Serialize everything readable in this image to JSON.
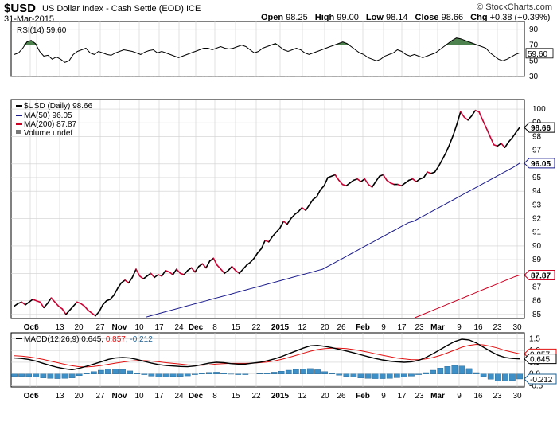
{
  "header": {
    "symbol": "$USD",
    "name": "US Dollar Index - Cash Settle (EOD) ICE",
    "date": "31-Mar-2015",
    "open_label": "Open",
    "open": "98.25",
    "high_label": "High",
    "high": "99.00",
    "low_label": "Low",
    "low": "98.14",
    "close_label": "Close",
    "close": "98.66",
    "chg_label": "Chg",
    "chg": "+0.38 (+0.39%)",
    "brand": "© StockCharts.com"
  },
  "chart_data": [
    {
      "type": "line",
      "panel": "RSI",
      "legend": "RSI(14) 59.60",
      "ylim": [
        30,
        100
      ],
      "yticks": [
        30,
        50,
        70,
        90
      ],
      "current_value_label": "59.60",
      "reference_lines": [
        70,
        30
      ],
      "series": [
        {
          "name": "RSI(14)",
          "values": [
            58,
            60,
            66,
            74,
            76,
            72,
            62,
            56,
            57,
            52,
            55,
            52,
            48,
            50,
            58,
            62,
            64,
            66,
            60,
            58,
            62,
            60,
            58,
            57,
            60,
            62,
            64,
            63,
            62,
            60,
            58,
            61,
            63,
            64,
            60,
            62,
            60,
            58,
            56,
            54,
            56,
            58,
            60,
            62,
            64,
            66,
            66,
            64,
            66,
            68,
            66,
            65,
            66,
            68,
            70,
            68,
            64,
            60,
            62,
            66,
            68,
            70,
            72,
            68,
            64,
            62,
            64,
            66,
            64,
            60,
            58,
            60,
            62,
            64,
            66,
            68,
            70,
            72,
            74,
            72,
            68,
            64,
            60,
            58,
            54,
            52,
            50,
            52,
            56,
            58,
            60,
            64,
            62,
            58,
            56,
            58,
            56,
            54,
            56,
            58,
            60,
            64,
            68,
            72,
            76,
            79,
            78,
            76,
            74,
            72,
            70,
            68,
            66,
            60,
            56,
            52,
            50,
            52,
            55,
            58,
            60
          ]
        }
      ]
    },
    {
      "type": "line",
      "panel": "Price",
      "legend": [
        "$USD (Daily) 98.66",
        "MA(50) 96.05",
        "MA(200) 87.87",
        "Volume undef"
      ],
      "ylim": [
        84.7,
        100.7
      ],
      "yticks": [
        85,
        86,
        87,
        88,
        89,
        90,
        91,
        92,
        93,
        94,
        95,
        96,
        97,
        98,
        99,
        100
      ],
      "x_tick_labels": [
        "Oct",
        "6",
        "13",
        "20",
        "27",
        "Nov",
        "10",
        "17",
        "24",
        "Dec",
        "8",
        "15",
        "22",
        "2015",
        "12",
        "20",
        "26",
        "Feb",
        "9",
        "17",
        "23",
        "Mar",
        "9",
        "16",
        "23",
        "30"
      ],
      "value_labels": {
        "close": "98.66",
        "ma50": "96.05",
        "ma200": "87.87"
      },
      "series": [
        {
          "name": "$USD (Daily)",
          "values": [
            85.6,
            85.8,
            85.9,
            85.7,
            85.9,
            86.1,
            86.0,
            85.9,
            85.5,
            85.8,
            86.2,
            85.9,
            85.6,
            85.4,
            85.0,
            85.3,
            85.6,
            85.9,
            85.8,
            85.6,
            85.3,
            85.1,
            84.9,
            85.2,
            85.7,
            86.0,
            86.1,
            86.4,
            86.9,
            87.3,
            87.5,
            87.3,
            87.7,
            88.3,
            87.8,
            87.6,
            87.8,
            88.0,
            87.7,
            87.9,
            87.8,
            88.2,
            88.1,
            87.9,
            88.3,
            88.0,
            87.9,
            88.2,
            88.4,
            88.1,
            88.5,
            88.7,
            88.4,
            88.9,
            89.1,
            88.6,
            88.3,
            88.0,
            88.2,
            88.5,
            88.2,
            88.0,
            88.3,
            88.6,
            88.8,
            89.1,
            89.5,
            89.8,
            90.4,
            90.3,
            90.7,
            91.0,
            91.3,
            91.8,
            91.6,
            92.0,
            92.3,
            92.5,
            92.8,
            92.6,
            93.0,
            93.4,
            93.6,
            94.1,
            94.4,
            95.0,
            95.1,
            95.2,
            94.8,
            94.5,
            94.4,
            94.6,
            94.8,
            94.9,
            94.7,
            94.9,
            94.5,
            94.3,
            94.7,
            95.1,
            95.2,
            94.8,
            94.6,
            94.5,
            94.5,
            94.4,
            94.6,
            94.8,
            94.9,
            94.7,
            94.9,
            95.0,
            95.4,
            95.3,
            95.4,
            95.8,
            96.3,
            96.8,
            97.4,
            98.1,
            98.9,
            99.8,
            99.4,
            99.2,
            99.5,
            99.9,
            99.8,
            99.2,
            98.6,
            98.0,
            97.4,
            97.3,
            97.5,
            97.2,
            97.6,
            97.9,
            98.3,
            98.66
          ]
        },
        {
          "name": "MA(50)",
          "values": [
            null,
            null,
            null,
            null,
            null,
            null,
            null,
            null,
            null,
            null,
            null,
            null,
            null,
            null,
            null,
            null,
            null,
            null,
            null,
            null,
            null,
            null,
            null,
            null,
            null,
            null,
            84.8,
            84.9,
            85.0,
            85.1,
            85.2,
            85.3,
            85.4,
            85.5,
            85.6,
            85.7,
            85.8,
            85.9,
            86.0,
            86.1,
            86.2,
            86.3,
            86.4,
            86.5,
            86.6,
            86.7,
            86.8,
            86.9,
            87.0,
            87.1,
            87.2,
            87.3,
            87.4,
            87.5,
            87.6,
            87.7,
            87.8,
            87.9,
            88.0,
            88.1,
            88.2,
            88.3,
            88.5,
            88.7,
            88.9,
            89.1,
            89.3,
            89.5,
            89.7,
            89.9,
            90.1,
            90.3,
            90.5,
            90.7,
            90.9,
            91.1,
            91.3,
            91.5,
            91.7,
            91.8,
            92.0,
            92.2,
            92.4,
            92.6,
            92.8,
            93.0,
            93.2,
            93.4,
            93.6,
            93.8,
            94.0,
            94.2,
            94.4,
            94.6,
            94.8,
            95.0,
            95.2,
            95.4,
            95.6,
            95.8,
            96.05
          ]
        },
        {
          "name": "MA(200)",
          "values": [
            null,
            null,
            null,
            null,
            null,
            null,
            null,
            null,
            null,
            null,
            null,
            null,
            null,
            null,
            null,
            null,
            null,
            null,
            null,
            null,
            null,
            null,
            null,
            null,
            null,
            null,
            null,
            null,
            null,
            null,
            null,
            null,
            null,
            null,
            null,
            null,
            null,
            null,
            null,
            null,
            null,
            null,
            null,
            null,
            null,
            null,
            null,
            null,
            null,
            null,
            null,
            null,
            null,
            null,
            null,
            null,
            null,
            null,
            null,
            null,
            null,
            null,
            null,
            null,
            null,
            null,
            null,
            null,
            null,
            null,
            null,
            null,
            null,
            null,
            null,
            null,
            null,
            null,
            null,
            null,
            84.75,
            84.9,
            85.05,
            85.2,
            85.35,
            85.5,
            85.65,
            85.8,
            85.95,
            86.1,
            86.25,
            86.4,
            86.55,
            86.7,
            86.85,
            87.0,
            87.15,
            87.3,
            87.45,
            87.6,
            87.75,
            87.87
          ]
        }
      ]
    },
    {
      "type": "line",
      "panel": "MACD",
      "legend": [
        "MACD(12,26,9) 0.645,",
        "0.857",
        ", -0.212"
      ],
      "ylim": [
        -0.55,
        1.75
      ],
      "yticks": [
        -0.5,
        0.0,
        0.5,
        1.0,
        1.5
      ],
      "value_labels": {
        "macd": "0.645",
        "signal": "0.857",
        "histogram": "-0.212"
      },
      "x_tick_labels": [
        "Oct",
        "6",
        "13",
        "20",
        "27",
        "Nov",
        "10",
        "17",
        "24",
        "Dec",
        "8",
        "15",
        "22",
        "2015",
        "12",
        "20",
        "26",
        "Feb",
        "9",
        "17",
        "23",
        "Mar",
        "9",
        "16",
        "23",
        "30"
      ],
      "series": [
        {
          "name": "MACD",
          "values": [
            0.68,
            0.66,
            0.62,
            0.55,
            0.45,
            0.36,
            0.28,
            0.22,
            0.18,
            0.24,
            0.33,
            0.42,
            0.52,
            0.62,
            0.68,
            0.7,
            0.68,
            0.62,
            0.54,
            0.46,
            0.4,
            0.36,
            0.34,
            0.32,
            0.31,
            0.34,
            0.4,
            0.46,
            0.5,
            0.48,
            0.44,
            0.42,
            0.42,
            0.46,
            0.5,
            0.56,
            0.64,
            0.74,
            0.86,
            0.98,
            1.1,
            1.2,
            1.22,
            1.18,
            1.12,
            1.05,
            0.98,
            0.9,
            0.82,
            0.74,
            0.66,
            0.6,
            0.55,
            0.52,
            0.5,
            0.52,
            0.58,
            0.7,
            0.86,
            1.04,
            1.22,
            1.38,
            1.48,
            1.45,
            1.32,
            1.14,
            0.96,
            0.8,
            0.7,
            0.66,
            0.645
          ]
        },
        {
          "name": "Signal",
          "values": [
            0.78,
            0.76,
            0.73,
            0.68,
            0.62,
            0.55,
            0.48,
            0.41,
            0.35,
            0.31,
            0.3,
            0.32,
            0.36,
            0.41,
            0.46,
            0.51,
            0.55,
            0.57,
            0.57,
            0.55,
            0.52,
            0.48,
            0.45,
            0.42,
            0.39,
            0.37,
            0.37,
            0.39,
            0.42,
            0.44,
            0.45,
            0.45,
            0.45,
            0.46,
            0.48,
            0.51,
            0.56,
            0.62,
            0.7,
            0.79,
            0.88,
            0.97,
            1.04,
            1.08,
            1.1,
            1.1,
            1.08,
            1.04,
            0.99,
            0.93,
            0.86,
            0.8,
            0.74,
            0.68,
            0.64,
            0.61,
            0.61,
            0.64,
            0.7,
            0.79,
            0.9,
            1.02,
            1.14,
            1.22,
            1.26,
            1.24,
            1.18,
            1.1,
            1.0,
            0.93,
            0.857
          ]
        },
        {
          "name": "Histogram",
          "values": [
            -0.1,
            -0.1,
            -0.11,
            -0.13,
            -0.17,
            -0.19,
            -0.2,
            -0.19,
            -0.17,
            -0.07,
            0.03,
            0.1,
            0.16,
            0.21,
            0.22,
            0.19,
            0.13,
            0.05,
            -0.03,
            -0.09,
            -0.12,
            -0.12,
            -0.11,
            -0.1,
            -0.08,
            -0.03,
            0.03,
            0.07,
            0.08,
            0.04,
            -0.01,
            -0.03,
            -0.03,
            0.0,
            0.02,
            0.05,
            0.08,
            0.12,
            0.16,
            0.19,
            0.22,
            0.23,
            0.18,
            0.1,
            0.02,
            -0.05,
            -0.1,
            -0.14,
            -0.17,
            -0.19,
            -0.2,
            -0.2,
            -0.19,
            -0.16,
            -0.14,
            -0.09,
            -0.03,
            0.06,
            0.16,
            0.25,
            0.32,
            0.36,
            0.34,
            0.23,
            0.06,
            -0.1,
            -0.22,
            -0.3,
            -0.3,
            -0.27,
            -0.212
          ]
        }
      ]
    }
  ],
  "colors": {
    "price": "#000000",
    "price_down": "#cc0033",
    "ma50": "#1a1a8c",
    "ma200": "#cc0022",
    "rsi_fill": "#2e6b2e",
    "macd_signal": "#e01010",
    "histogram": "#3d8fc6"
  }
}
